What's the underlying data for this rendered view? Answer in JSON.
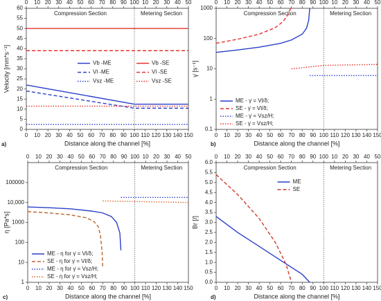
{
  "chart_data": [
    {
      "type": "line",
      "panel_label": "a)",
      "sections": [
        "Compression Section",
        "Metering Section"
      ],
      "xlabel": "Distance along the channel [%]",
      "ylabel": "Velocity [mm*s⁻¹]",
      "xlim": [
        0,
        150
      ],
      "xticks": [
        0,
        10,
        20,
        30,
        40,
        50,
        60,
        70,
        80,
        90,
        100,
        110,
        120,
        130,
        140,
        150
      ],
      "x2ticks": [
        0,
        10,
        20,
        30,
        40,
        50,
        60,
        70,
        80,
        90,
        100,
        {
          "value": 110,
          "label": "10"
        },
        {
          "value": 120,
          "label": "20"
        },
        {
          "value": 130,
          "label": "30"
        },
        {
          "value": 140,
          "label": "40"
        },
        {
          "value": 150,
          "label": "50"
        }
      ],
      "ylim": [
        0,
        60
      ],
      "yticks": [
        0,
        5,
        10,
        15,
        20,
        25,
        30,
        35,
        40,
        45,
        50,
        55,
        60
      ],
      "ylog": false,
      "divider": 100,
      "legend": "center right",
      "legend_columns": 2,
      "series": [
        {
          "name": "Vb -ME",
          "color": "#2a3fc8",
          "dash": "solid",
          "x": [
            0,
            100,
            150
          ],
          "values": [
            22,
            12.5,
            12.5
          ]
        },
        {
          "name": "Vl -ME",
          "color": "#2a3fc8",
          "dash": "dashed",
          "x": [
            0,
            100,
            150
          ],
          "values": [
            19,
            10.5,
            10.5
          ]
        },
        {
          "name": "Vsz -ME",
          "color": "#2a3fc8",
          "dash": "dotted",
          "x": [
            0,
            150
          ],
          "values": [
            2.5,
            2.5
          ]
        },
        {
          "name": "Vb -SE",
          "color": "#e8302a",
          "dash": "solid",
          "x": [
            0,
            150
          ],
          "values": [
            50,
            50
          ]
        },
        {
          "name": "Vl -SE",
          "color": "#e8302a",
          "dash": "dashed",
          "x": [
            0,
            150
          ],
          "values": [
            39,
            39
          ]
        },
        {
          "name": "Vsz -SE",
          "color": "#e8302a",
          "dash": "dotted",
          "x": [
            0,
            150
          ],
          "values": [
            11.5,
            11.5
          ]
        }
      ]
    },
    {
      "type": "line",
      "panel_label": "b)",
      "sections": [
        "Compression Section",
        "Metering Section"
      ],
      "xlabel": "Distance along the channel [%]",
      "ylabel": "γ̇ [s⁻¹]",
      "xlim": [
        0,
        150
      ],
      "xticks": [
        0,
        10,
        20,
        30,
        40,
        50,
        60,
        70,
        80,
        90,
        100,
        110,
        120,
        130,
        140,
        150
      ],
      "x2ticks": [
        0,
        10,
        20,
        30,
        40,
        50,
        60,
        70,
        80,
        90,
        100,
        {
          "value": 110,
          "label": "10"
        },
        {
          "value": 120,
          "label": "20"
        },
        {
          "value": 130,
          "label": "30"
        },
        {
          "value": 140,
          "label": "40"
        },
        {
          "value": 150,
          "label": "50"
        }
      ],
      "ylim": [
        0.1,
        1000
      ],
      "yticks": [
        0.1,
        1,
        10,
        100,
        1000
      ],
      "ylog": true,
      "divider": 100,
      "legend": "lower left",
      "legend_columns": 1,
      "series": [
        {
          "name": "ME - γ̇ = Vl/δ;",
          "color": "#2a3fc8",
          "dash": "solid",
          "x": [
            0,
            20,
            40,
            60,
            70,
            80,
            84,
            86,
            87
          ],
          "values": [
            35,
            42,
            52,
            70,
            90,
            140,
            220,
            400,
            1000
          ]
        },
        {
          "name": "SE - γ̇ = Vl/δ;",
          "color": "#e8302a",
          "dash": "dashed",
          "x": [
            0,
            20,
            40,
            55,
            62,
            66,
            68,
            69,
            70
          ],
          "values": [
            70,
            95,
            140,
            230,
            360,
            560,
            800,
            950,
            1000
          ]
        },
        {
          "name": "ME - γ̇ = Vsz/H;",
          "color": "#2a3fc8",
          "dash": "dotted",
          "x": [
            87,
            150
          ],
          "values": [
            6,
            6
          ]
        },
        {
          "name": "SE - γ̇ = Vsz/H;",
          "color": "#e8302a",
          "dash": "dotted",
          "x": [
            70,
            100,
            150
          ],
          "values": [
            10,
            13,
            14
          ]
        }
      ]
    },
    {
      "type": "line",
      "panel_label": "c)",
      "sections": [
        "Compression Section",
        "Metering Section"
      ],
      "xlabel": "Distance along the channel [%]",
      "ylabel": "η [Pa*s]",
      "xlim": [
        0,
        150
      ],
      "xticks": [
        0,
        10,
        20,
        30,
        40,
        50,
        60,
        70,
        80,
        90,
        100,
        110,
        120,
        130,
        140,
        150
      ],
      "x2ticks": [
        0,
        10,
        20,
        30,
        40,
        50,
        60,
        70,
        80,
        90,
        100,
        {
          "value": 110,
          "label": "10"
        },
        {
          "value": 120,
          "label": "20"
        },
        {
          "value": 130,
          "label": "30"
        },
        {
          "value": 140,
          "label": "40"
        },
        {
          "value": 150,
          "label": "50"
        }
      ],
      "ylim": [
        1,
        1000000
      ],
      "yticks": [
        1,
        10,
        100,
        1000,
        {
          "value": 10000,
          "label": "10,000"
        },
        100000
      ],
      "ylog": true,
      "divider": 100,
      "legend": "lower left",
      "legend_columns": 1,
      "series": [
        {
          "name": "ME - η for γ̇ = Vl/δ;",
          "color": "#2a3fc8",
          "dash": "solid",
          "x": [
            0,
            20,
            40,
            60,
            70,
            78,
            83,
            86,
            87
          ],
          "values": [
            6000,
            5500,
            4800,
            3700,
            3000,
            2000,
            1000,
            300,
            40
          ]
        },
        {
          "name": "SE - η for γ̇ = Vl/δ;",
          "color": "#b8642a",
          "dash": "dashed",
          "x": [
            0,
            20,
            40,
            55,
            62,
            66,
            68,
            69.5,
            70
          ],
          "values": [
            3500,
            3000,
            2400,
            1700,
            1100,
            600,
            200,
            30,
            5
          ]
        },
        {
          "name": "ME - η for γ̇ = Vsz/H;",
          "color": "#2a3fc8",
          "dash": "dotted",
          "x": [
            87,
            150
          ],
          "values": [
            18000,
            18000
          ]
        },
        {
          "name": "SE - η for γ̇ = Vsz/H;",
          "color": "#e0602a",
          "dash": "dotted",
          "x": [
            70,
            150
          ],
          "values": [
            12000,
            10000
          ]
        }
      ]
    },
    {
      "type": "line",
      "panel_label": "d)",
      "sections": [
        "Compression Section",
        "Metering Section"
      ],
      "xlabel": "Distance along the channel [%]",
      "ylabel": "Br [/]",
      "xlim": [
        0,
        150
      ],
      "xticks": [
        0,
        10,
        20,
        30,
        40,
        50,
        60,
        70,
        80,
        90,
        100,
        110,
        120,
        130,
        140,
        150
      ],
      "x2ticks": [
        0,
        10,
        20,
        30,
        40,
        50,
        60,
        70,
        80,
        90,
        100,
        {
          "value": 110,
          "label": "10"
        },
        {
          "value": 120,
          "label": "20"
        },
        {
          "value": 130,
          "label": "30"
        },
        {
          "value": 140,
          "label": "40"
        },
        {
          "value": 150,
          "label": "50"
        }
      ],
      "ylim": [
        0,
        6
      ],
      "yticks": [
        {
          "value": 0,
          "label": "0.0"
        },
        0.5,
        {
          "value": 1,
          "label": "1.0"
        },
        1.5,
        {
          "value": 2,
          "label": "2.0"
        },
        2.5,
        {
          "value": 3,
          "label": "3.0"
        },
        3.5,
        {
          "value": 4,
          "label": "4.0"
        },
        4.5,
        {
          "value": 5,
          "label": "5.0"
        },
        5.5,
        {
          "value": 6,
          "label": "6.0"
        }
      ],
      "ylog": false,
      "divider": 100,
      "legend": "upper right",
      "legend_columns": 1,
      "series": [
        {
          "name": "ME",
          "color": "#2a3fc8",
          "dash": "solid",
          "x": [
            0,
            20,
            40,
            60,
            80,
            87
          ],
          "values": [
            3.3,
            2.5,
            1.8,
            1.1,
            0.4,
            0
          ]
        },
        {
          "name": "SE",
          "color": "#d03a2a",
          "dash": "dashed",
          "x": [
            0,
            20,
            40,
            55,
            65,
            70
          ],
          "values": [
            5.4,
            4.4,
            3.2,
            2.0,
            0.9,
            0
          ]
        }
      ]
    }
  ]
}
